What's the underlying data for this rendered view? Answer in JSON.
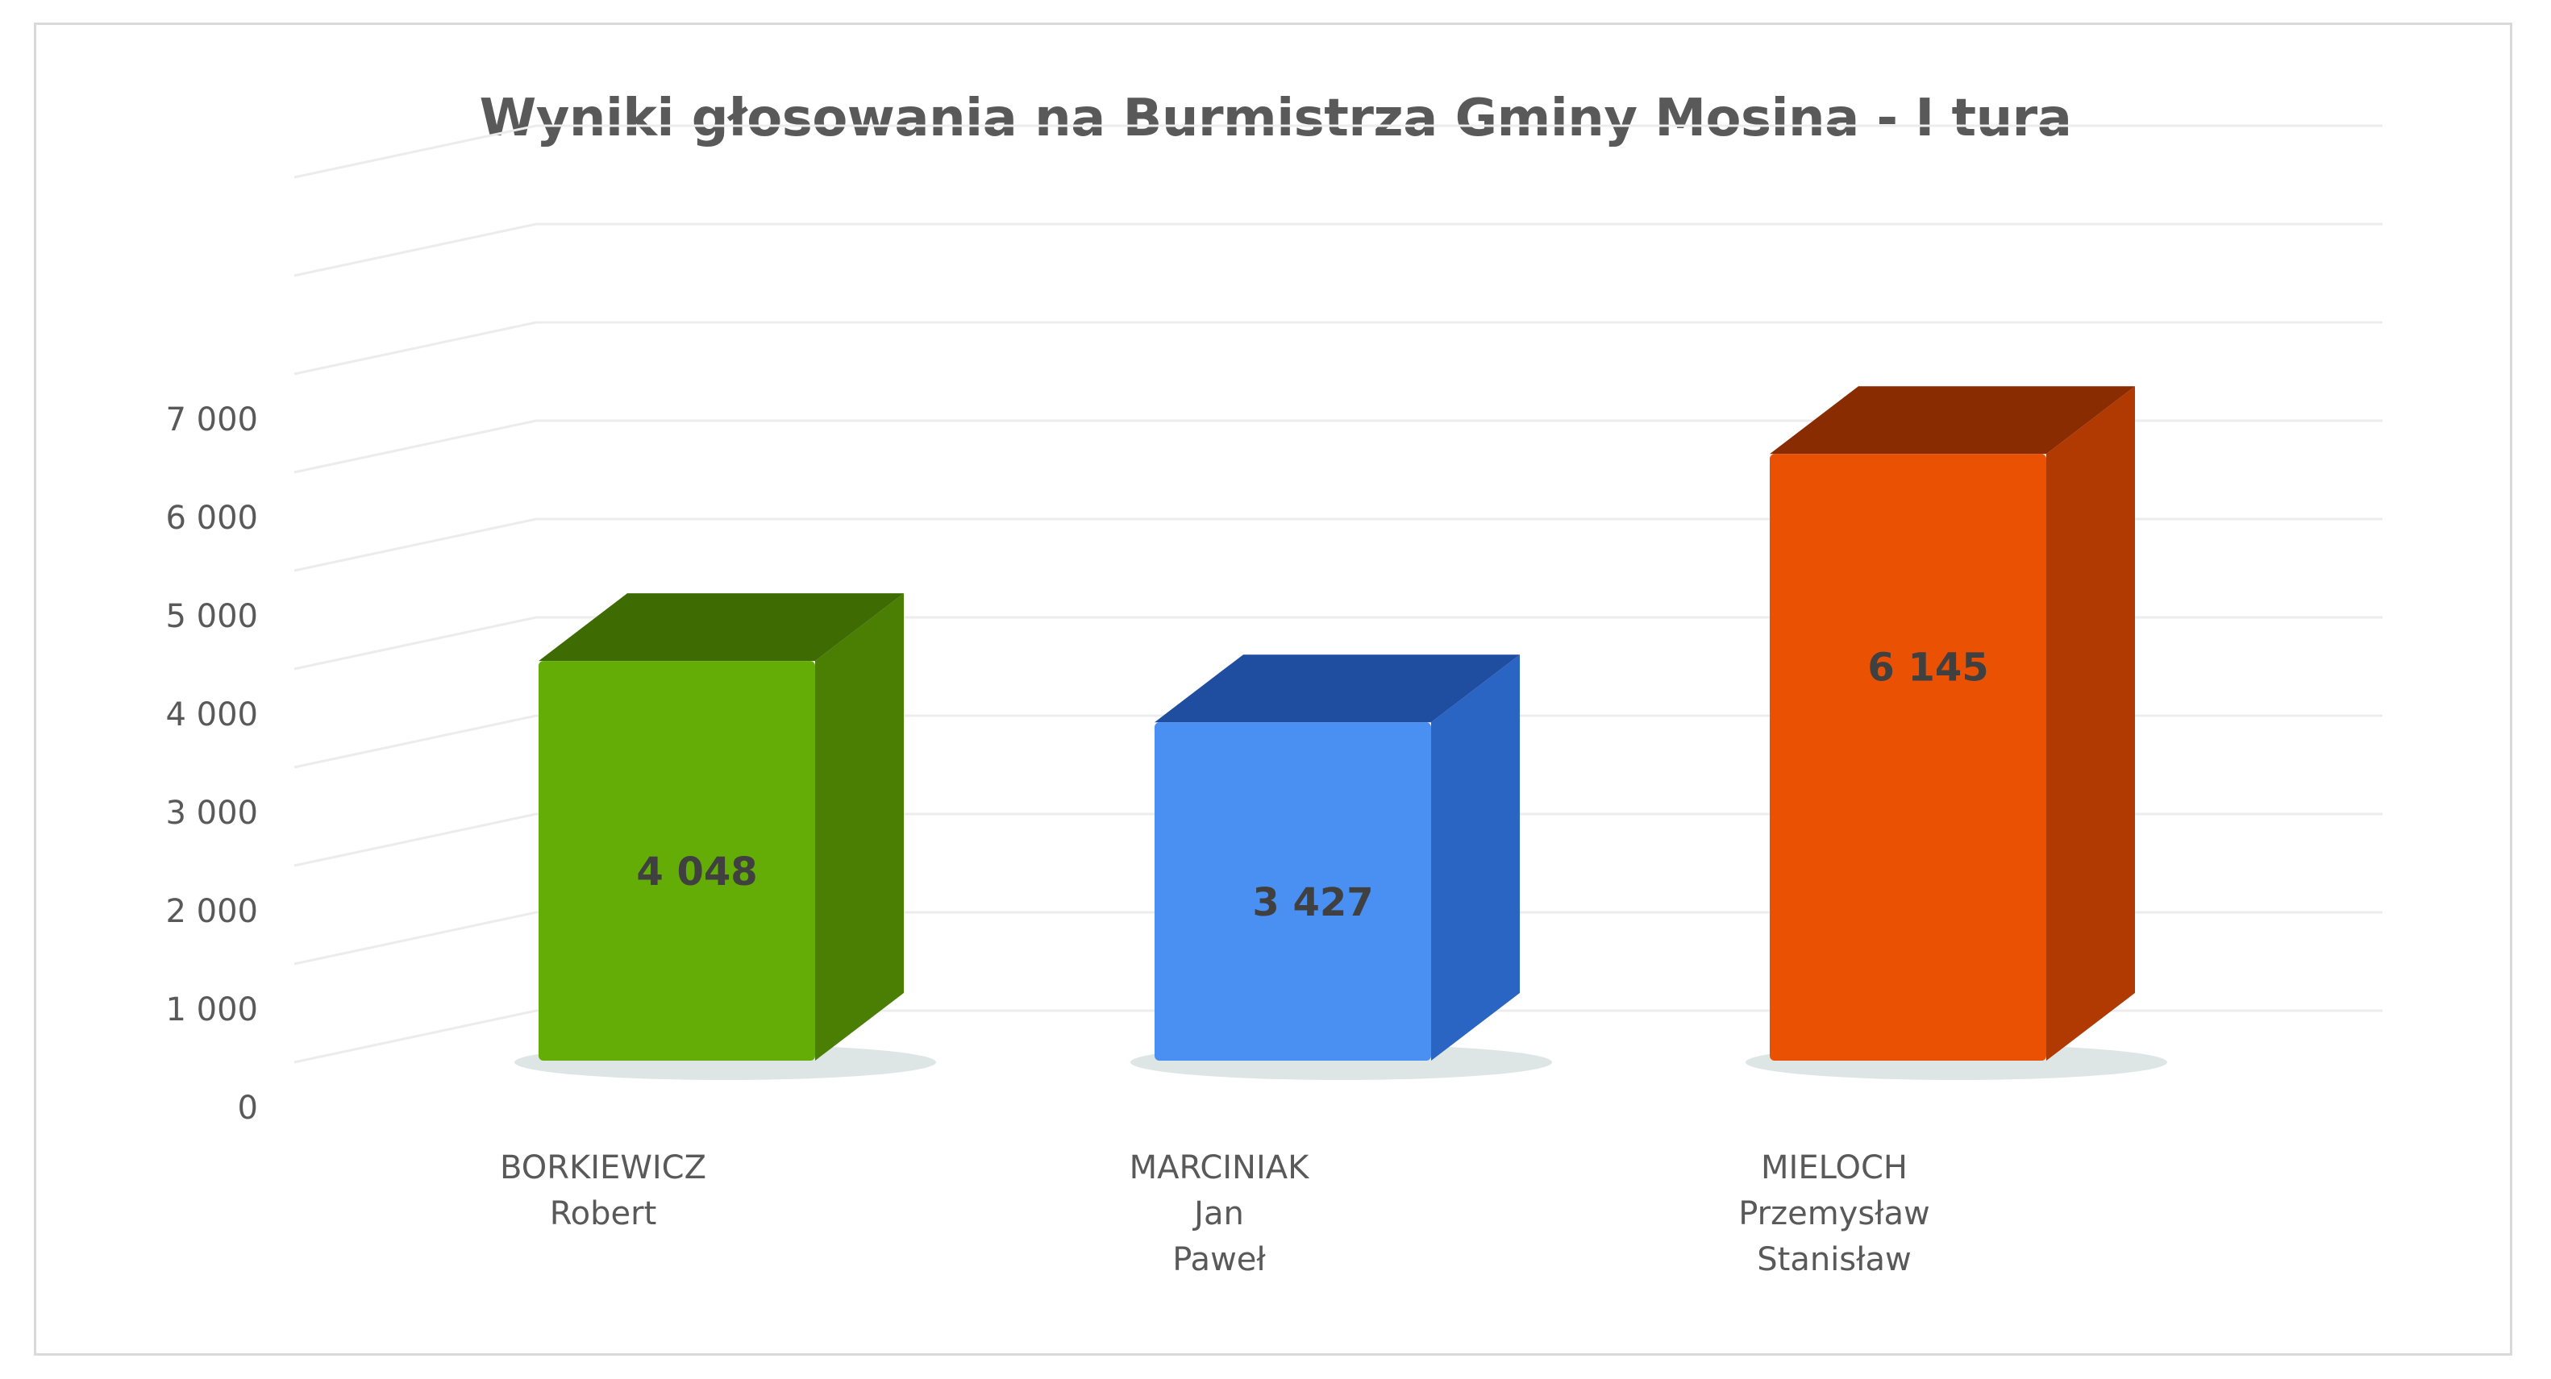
{
  "chart_data": {
    "type": "bar",
    "title": "Wyniki głosowania na Burmistrza Gminy Mosina - I tura",
    "categories": [
      [
        "BORKIEWICZ",
        "Robert"
      ],
      [
        "MARCINIAK",
        "Jan",
        "Paweł"
      ],
      [
        "MIELOCH",
        "Przemysław",
        "Stanisław"
      ]
    ],
    "values": [
      4048,
      3427,
      6145
    ],
    "value_labels": [
      "4 048",
      "3 427",
      "6 145"
    ],
    "bar_colors": [
      {
        "front": "#63ad06",
        "side": "#4a7f04",
        "top": "#3f6b03"
      },
      {
        "front": "#4a8ff2",
        "side": "#2b65c4",
        "top": "#1f4da0"
      },
      {
        "front": "#ea5103",
        "side": "#b03a02",
        "top": "#8a2c01"
      }
    ],
    "y_ticks": [
      "0",
      "1 000",
      "2 000",
      "3 000",
      "4 000",
      "5 000",
      "6 000",
      "7 000"
    ],
    "ylim": [
      0,
      7000
    ],
    "grid": true,
    "style": "3d-column",
    "legend": "none"
  }
}
